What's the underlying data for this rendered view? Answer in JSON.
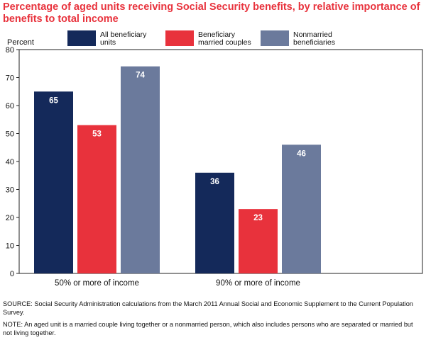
{
  "title": "Percentage of aged units receiving Social Security benefits, by relative importance of benefits to total income",
  "chart_data": {
    "type": "bar",
    "title": "Percentage of aged units receiving Social Security benefits, by relative importance of benefits to total income",
    "ylabel": "Percent",
    "xlabel": "",
    "ylim": [
      0,
      80
    ],
    "yticks": [
      0,
      10,
      20,
      30,
      40,
      50,
      60,
      70,
      80
    ],
    "grid": false,
    "legend_position": "top",
    "categories": [
      "50% or more of income",
      "90% or more of income"
    ],
    "series": [
      {
        "name": "All beneficiary units",
        "legend_lines": [
          "All beneficiary",
          "units"
        ],
        "color": "#14295a",
        "values": [
          65,
          36
        ]
      },
      {
        "name": "Beneficiary married couples",
        "legend_lines": [
          "Beneficiary",
          "married couples"
        ],
        "color": "#e8323c",
        "values": [
          53,
          23
        ]
      },
      {
        "name": "Nonmarried beneficiaries",
        "legend_lines": [
          "Nonmarried",
          "beneficiaries"
        ],
        "color": "#6b7a9c",
        "values": [
          74,
          46
        ]
      }
    ]
  },
  "source": "SOURCE:  Social Security Administration calculations from the March 2011 Annual Social and Economic Supplement to the Current Population Survey.",
  "note": "NOTE:  An aged unit is a married couple living together or a nonmarried person, which also includes persons who are separated or married but not living together."
}
